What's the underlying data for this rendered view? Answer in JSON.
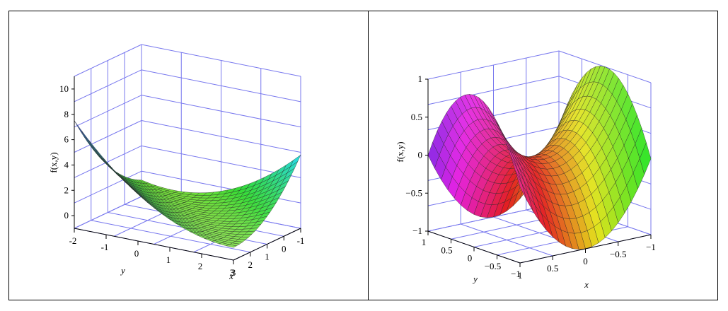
{
  "chart_data": [
    {
      "type": "surface3d",
      "zlabel": "f(x,y)",
      "xlabel": "x",
      "ylabel": "y",
      "x_ticks": [
        "-1",
        "0",
        "1",
        "2",
        "3"
      ],
      "y_ticks": [
        "-2",
        "-1",
        "0",
        "1",
        "2",
        "3"
      ],
      "z_ticks": [
        "0",
        "2",
        "4",
        "6",
        "8",
        "10"
      ],
      "xlim": [
        -1,
        3
      ],
      "ylim": [
        -2,
        3
      ],
      "zlim": [
        -1,
        11
      ],
      "grid": true,
      "mesh": "black"
    },
    {
      "type": "surface3d",
      "zlabel": "f(x,y)",
      "xlabel": "x",
      "ylabel": "y",
      "x_ticks": [
        "1",
        "0.5",
        "0",
        "−0.5",
        "−1"
      ],
      "y_ticks": [
        "−1",
        "−0.5",
        "0",
        "0.5",
        "1"
      ],
      "z_ticks": [
        "1",
        "0.5",
        "0",
        "−0.5",
        "−1"
      ],
      "xlim": [
        -1,
        1
      ],
      "ylim": [
        -1,
        1
      ],
      "zlim": [
        -1,
        1
      ],
      "grid": true,
      "mesh": "black"
    }
  ]
}
